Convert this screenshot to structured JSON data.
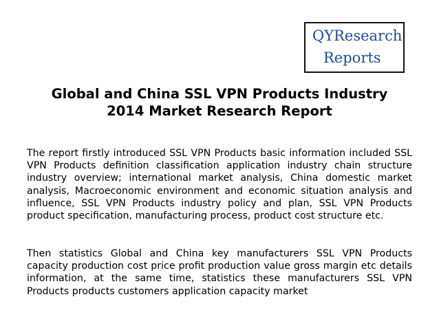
{
  "logo": {
    "line1": "QYResearch",
    "line2": "Reports"
  },
  "title": {
    "line1": "Global and China SSL VPN Products Industry",
    "line2": "2014 Market Research Report"
  },
  "paragraphs": [
    "The report firstly introduced SSL VPN Products basic information included SSL VPN Products definition classification application industry chain structure industry overview; international market analysis, China domestic market analysis, Macroeconomic environment and economic situation analysis and influence, SSL VPN Products industry policy and plan, SSL VPN Products product specification, manufacturing process, product cost structure etc.",
    "Then statistics Global and China key manufacturers SSL VPN Products capacity production cost price profit production value gross margin etc details information, at the same time, statistics these manufacturers SSL VPN Products products customers application capacity market"
  ],
  "colors": {
    "logo_text": "#1e4a95",
    "text": "#000000",
    "background": "#ffffff"
  }
}
